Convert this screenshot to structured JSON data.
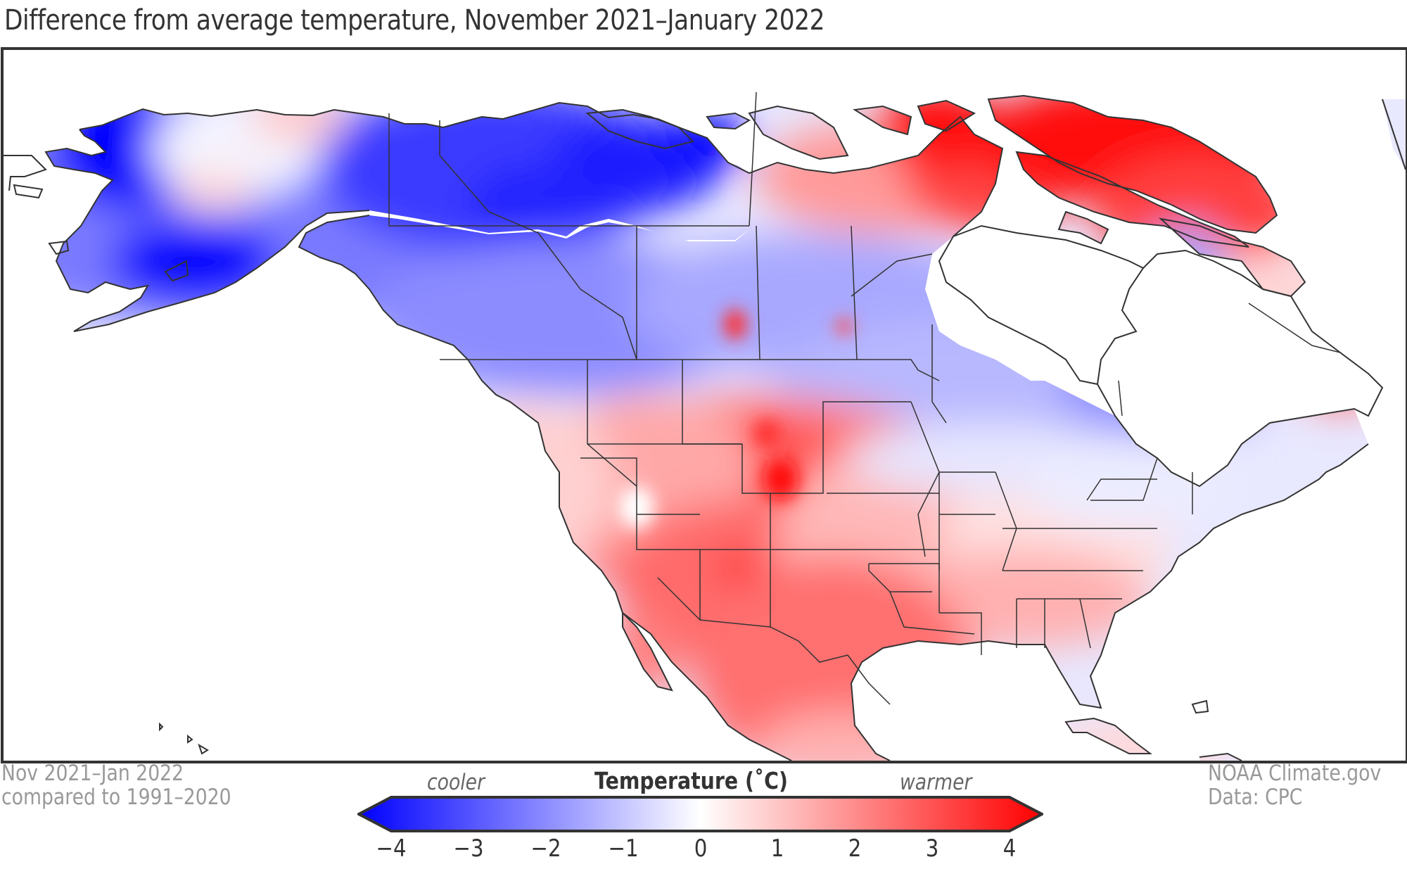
{
  "title": "Difference from average temperature, November 2021–January 2022",
  "footer_left": {
    "line1": "Nov 2021–Jan 2022",
    "line2": "compared to 1991–2020"
  },
  "footer_right": {
    "line1": "NOAA Climate.gov",
    "line2": "Data: CPC"
  },
  "colorbar": {
    "title": "Temperature (˚C)",
    "left_label": "cooler",
    "right_label": "warmer",
    "min": -4,
    "max": 4,
    "extend": "both",
    "ticks": [
      "−4",
      "−3",
      "−2",
      "−1",
      "0",
      "1",
      "2",
      "3",
      "4"
    ],
    "tick_values": [
      -4,
      -3,
      -2,
      -1,
      0,
      1,
      2,
      3,
      4
    ],
    "colors": {
      "cold": "#0000ff",
      "neutral": "#ffffff",
      "warm": "#ff0000"
    }
  },
  "map": {
    "region": "North America",
    "variable": "Temperature anomaly",
    "units": "˚C",
    "regions": [
      {
        "name": "Western Alaska",
        "anomaly": -4
      },
      {
        "name": "Northern Alaska interior",
        "anomaly": 0.5
      },
      {
        "name": "Southwest Alaska",
        "anomaly": -4
      },
      {
        "name": "Yukon / Northwest Territories",
        "anomaly": -3
      },
      {
        "name": "British Columbia / Alberta",
        "anomaly": -2
      },
      {
        "name": "Saskatchewan / Manitoba",
        "anomaly": -1.5
      },
      {
        "name": "Ontario",
        "anomaly": -1
      },
      {
        "name": "Nunavut mainland",
        "anomaly": 2
      },
      {
        "name": "Canadian Arctic Archipelago",
        "anomaly": 4
      },
      {
        "name": "Baffin Island",
        "anomaly": 3
      },
      {
        "name": "Northern Quebec / Labrador",
        "anomaly": 0.7
      },
      {
        "name": "Great Lakes / Upper Midwest",
        "anomaly": -0.5
      },
      {
        "name": "Northeast US",
        "anomaly": 0.3
      },
      {
        "name": "Pacific Northwest",
        "anomaly": 0.8
      },
      {
        "name": "Montana",
        "anomaly": 2
      },
      {
        "name": "Wyoming",
        "anomaly": 3
      },
      {
        "name": "Colorado",
        "anomaly": 2.5
      },
      {
        "name": "Southern Plains",
        "anomaly": 2.5
      },
      {
        "name": "Arizona",
        "anomaly": 3
      },
      {
        "name": "Southeast US",
        "anomaly": 1
      },
      {
        "name": "Mexico",
        "anomaly": 2
      },
      {
        "name": "Caribbean",
        "anomaly": 0.5
      }
    ]
  }
}
